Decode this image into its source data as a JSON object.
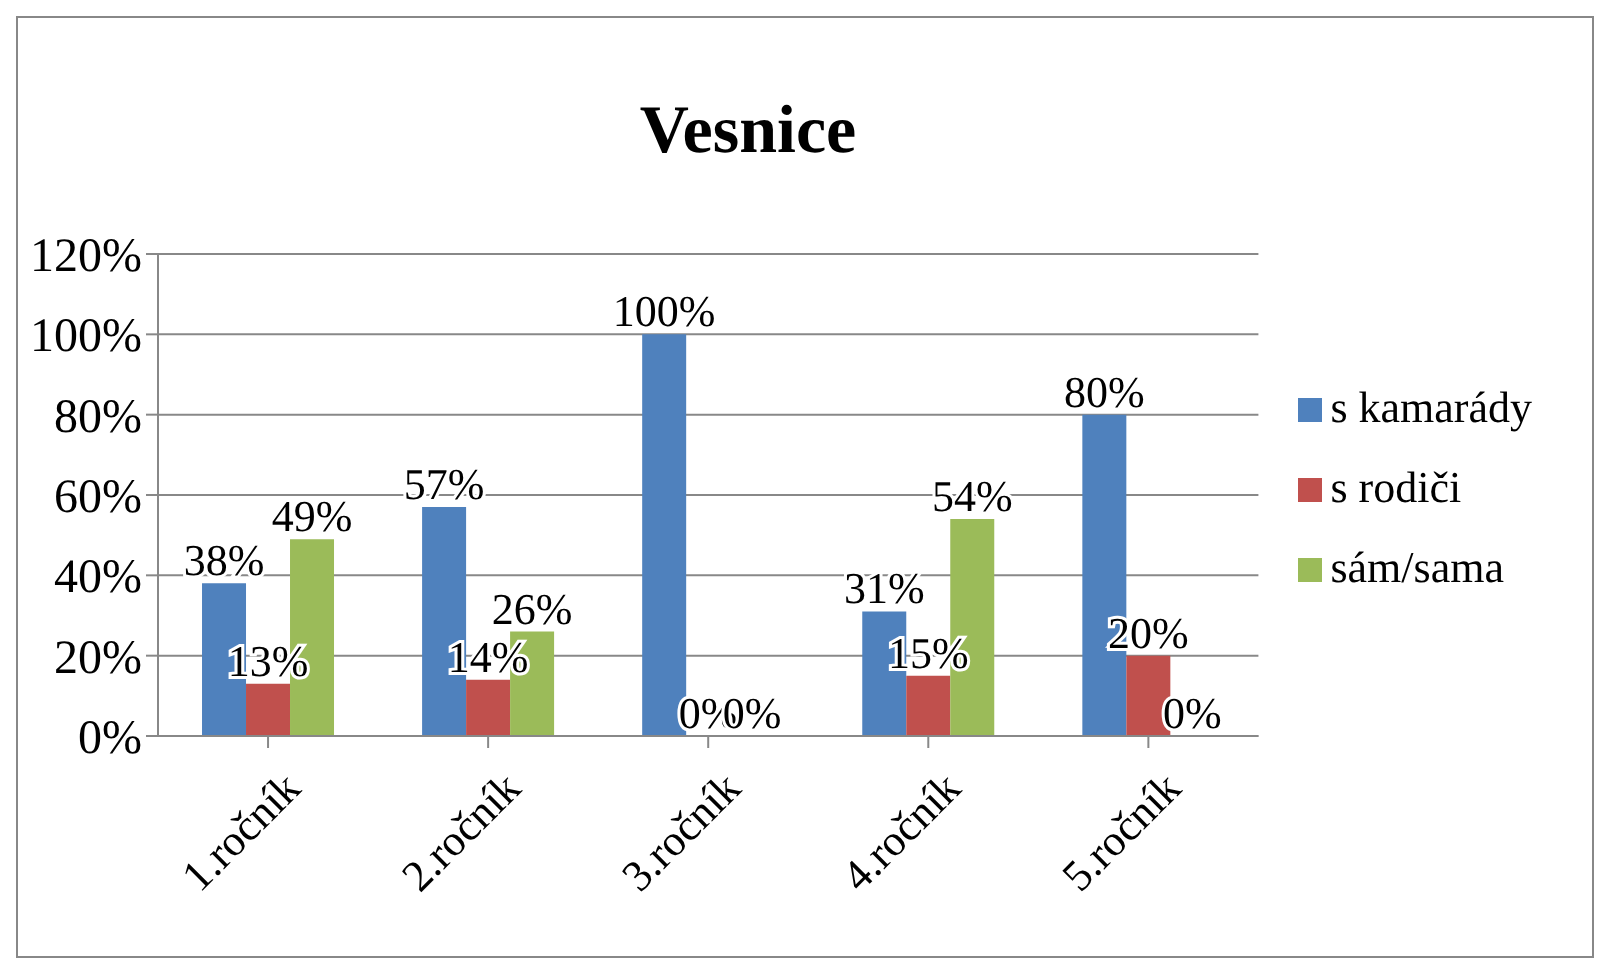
{
  "chart_data": {
    "type": "bar",
    "title": "Vesnice",
    "categories": [
      "1.ročník",
      "2.ročník",
      "3.ročník",
      "4.ročník",
      "5.ročník"
    ],
    "series": [
      {
        "name": "s kamarády",
        "color": "#4f81bd",
        "values": [
          38,
          57,
          100,
          31,
          80
        ],
        "value_labels": [
          "38%",
          "57%",
          "100%",
          "31%",
          "80%"
        ]
      },
      {
        "name": "s rodiči",
        "color": "#c0504d",
        "values": [
          13,
          14,
          0,
          15,
          20
        ],
        "value_labels": [
          "13%",
          "14%",
          "0%",
          "15%",
          "20%"
        ]
      },
      {
        "name": "sám/sama",
        "color": "#9bbb59",
        "values": [
          49,
          26,
          0,
          54,
          0
        ],
        "value_labels": [
          "49%",
          "26%",
          "0%",
          "54%",
          "0%"
        ]
      }
    ],
    "ylim": [
      0,
      120
    ],
    "yticks": [
      {
        "value": 0,
        "label": "0%"
      },
      {
        "value": 20,
        "label": "20%"
      },
      {
        "value": 40,
        "label": "40%"
      },
      {
        "value": 60,
        "label": "60%"
      },
      {
        "value": 80,
        "label": "80%"
      },
      {
        "value": 100,
        "label": "100%"
      },
      {
        "value": 120,
        "label": "120%"
      }
    ],
    "grid": "y",
    "legend": "right"
  }
}
